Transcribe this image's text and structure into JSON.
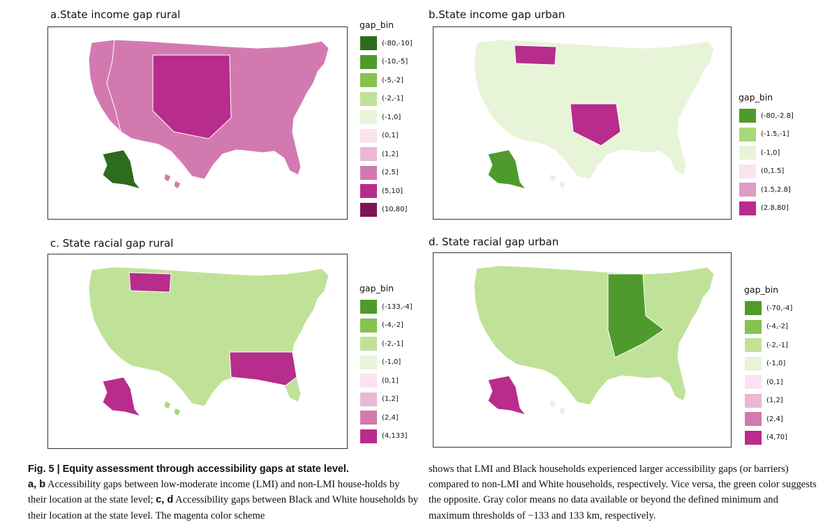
{
  "panels": [
    {
      "id": "a",
      "title": "a.State income gap rural",
      "legend_title": "gap_bin",
      "legend": [
        {
          "label": "(-80,-10]",
          "color": "#2d6b1e"
        },
        {
          "label": "(-10,-5]",
          "color": "#4f9a2c"
        },
        {
          "label": "(-5,-2]",
          "color": "#86c24e"
        },
        {
          "label": "(-2,-1]",
          "color": "#c0e298"
        },
        {
          "label": "(-1,0]",
          "color": "#e8f4d8"
        },
        {
          "label": "(0,1]",
          "color": "#fbe2ef"
        },
        {
          "label": "(1,2]",
          "color": "#eab8d5"
        },
        {
          "label": "(2,5]",
          "color": "#d27ab0"
        },
        {
          "label": "(5,10]",
          "color": "#b82c8c"
        },
        {
          "label": "(10,80]",
          "color": "#7d1554"
        }
      ],
      "base_color": "#d27ab0",
      "accent_color": "#b82c8c",
      "alaska_color": "#2d6b1e",
      "hawaii_color": "#d27ab0"
    },
    {
      "id": "b",
      "title": "b.State income gap urban",
      "legend_title": "gap_bin",
      "legend": [
        {
          "label": "(-80,-2.8]",
          "color": "#4f9a2c"
        },
        {
          "label": "(-1.5,-1]",
          "color": "#a8d978"
        },
        {
          "label": "(-1,0]",
          "color": "#e8f4d8"
        },
        {
          "label": "(0,1.5]",
          "color": "#fbe2ef"
        },
        {
          "label": "(1.5,2.8]",
          "color": "#dd9cc6"
        },
        {
          "label": "(2.8,80]",
          "color": "#b82c8c"
        }
      ],
      "base_color": "#e8f4d8",
      "accent_color": "#b82c8c",
      "alaska_color": "#4f9a2c",
      "hawaii_color": "#e8f4d8"
    },
    {
      "id": "c",
      "title": "c. State racial gap rural",
      "legend_title": "gap_bin",
      "legend": [
        {
          "label": "(-133,-4]",
          "color": "#4f9a2c"
        },
        {
          "label": "(-4,-2]",
          "color": "#86c24e"
        },
        {
          "label": "(-2,-1]",
          "color": "#c0e298"
        },
        {
          "label": "(-1,0]",
          "color": "#e8f4d8"
        },
        {
          "label": "(0,1]",
          "color": "#fbe2ef"
        },
        {
          "label": "(1,2]",
          "color": "#eab8d5"
        },
        {
          "label": "(2,4]",
          "color": "#d27ab0"
        },
        {
          "label": "(4,133]",
          "color": "#b82c8c"
        }
      ],
      "base_color": "#c0e298",
      "accent_color": "#b82c8c",
      "alaska_color": "#b82c8c",
      "hawaii_color": "#a8d978"
    },
    {
      "id": "d",
      "title": "d. State racial gap urban",
      "legend_title": "gap_bin",
      "legend": [
        {
          "label": "(-70,-4]",
          "color": "#4f9a2c"
        },
        {
          "label": "(-4,-2]",
          "color": "#86c24e"
        },
        {
          "label": "(-2,-1]",
          "color": "#c0e298"
        },
        {
          "label": "(-1,0]",
          "color": "#e8f4d8"
        },
        {
          "label": "(0,1]",
          "color": "#fbe2ef"
        },
        {
          "label": "(1,2]",
          "color": "#eab8d5"
        },
        {
          "label": "(2,4]",
          "color": "#d27ab0"
        },
        {
          "label": "(4,70]",
          "color": "#b82c8c"
        }
      ],
      "base_color": "#c0e298",
      "accent_color": "#4f9a2c",
      "alaska_color": "#b82c8c",
      "hawaii_color": "#e8f4d8"
    }
  ],
  "caption": {
    "fig_label": "Fig. 5 | Equity assessment through accessibility gaps at state level.",
    "a_b": "a, b",
    "text1": " Accessibility gaps between low-moderate income (LMI) and non-LMI house-holds by their location at the state level; ",
    "c_d": "c, d",
    "text2": " Accessibility gaps between Black and White households by their location at the state level. The magenta color scheme",
    "right": "shows that LMI and Black households experienced larger accessibility gaps (or barriers) compared to non-LMI and White households, respectively. Vice versa, the green color suggests the opposite. Gray color means no data available or beyond the defined minimum and maximum thresholds of −133 and 133 km, respectively."
  }
}
